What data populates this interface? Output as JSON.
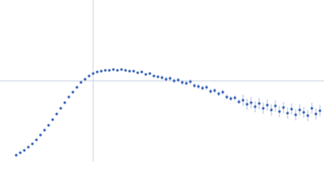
{
  "chart_data": {
    "type": "scatter",
    "x": [
      20,
      25,
      30,
      35,
      40,
      45,
      50,
      55,
      60,
      65,
      70,
      75,
      80,
      85,
      90,
      95,
      100,
      105,
      110,
      115,
      120,
      125,
      130,
      135,
      140,
      145,
      150,
      155,
      160,
      165,
      170,
      175,
      180,
      185,
      190,
      195,
      200,
      205,
      210,
      215,
      220,
      225,
      230,
      235,
      240,
      245,
      250,
      255,
      260,
      265,
      270,
      275,
      280,
      285,
      290,
      295,
      300,
      305,
      310,
      315,
      320,
      325,
      330,
      335,
      340,
      345,
      350,
      355,
      360,
      365,
      370,
      375,
      380,
      385,
      390,
      395
    ],
    "series": [
      {
        "color": "#3a66b8",
        "values": [
          8,
          11,
          14,
          18,
          22,
          27,
          33,
          39,
          45,
          52,
          59,
          66,
          73,
          80,
          86,
          92,
          98,
          102,
          106,
          109,
          111,
          112,
          113,
          113,
          114,
          113,
          114,
          113,
          112,
          112,
          110,
          111,
          108,
          109,
          106,
          105,
          104,
          102,
          103,
          100,
          101,
          98,
          97,
          99,
          94,
          93,
          91,
          92,
          87,
          88,
          84,
          86,
          80,
          78,
          79,
          74,
          76,
          71,
          73,
          68,
          72,
          66,
          70,
          64,
          69,
          62,
          67,
          60,
          65,
          58,
          64,
          61,
          57,
          66,
          59,
          63
        ],
        "errors": [
          1,
          1,
          1,
          1,
          1,
          1,
          1,
          1,
          1,
          1,
          1,
          1,
          1,
          1,
          1,
          1,
          1,
          1,
          1,
          1,
          1,
          1,
          1,
          1,
          1,
          1,
          1,
          1,
          1,
          1,
          1,
          1,
          1,
          1,
          1,
          1,
          3,
          3,
          3,
          3,
          3,
          3,
          3,
          3,
          3,
          3,
          3,
          3,
          3,
          3,
          3,
          3,
          3,
          3,
          3,
          3,
          7,
          7,
          7,
          7,
          7,
          7,
          7,
          7,
          7,
          7,
          7,
          7,
          7,
          7,
          7,
          7,
          7,
          7,
          7,
          7
        ]
      }
    ],
    "xlim": [
      0,
      400
    ],
    "ylim": [
      0,
      200
    ],
    "gridlines": {
      "x": [
        115
      ],
      "y": [
        100
      ]
    }
  }
}
